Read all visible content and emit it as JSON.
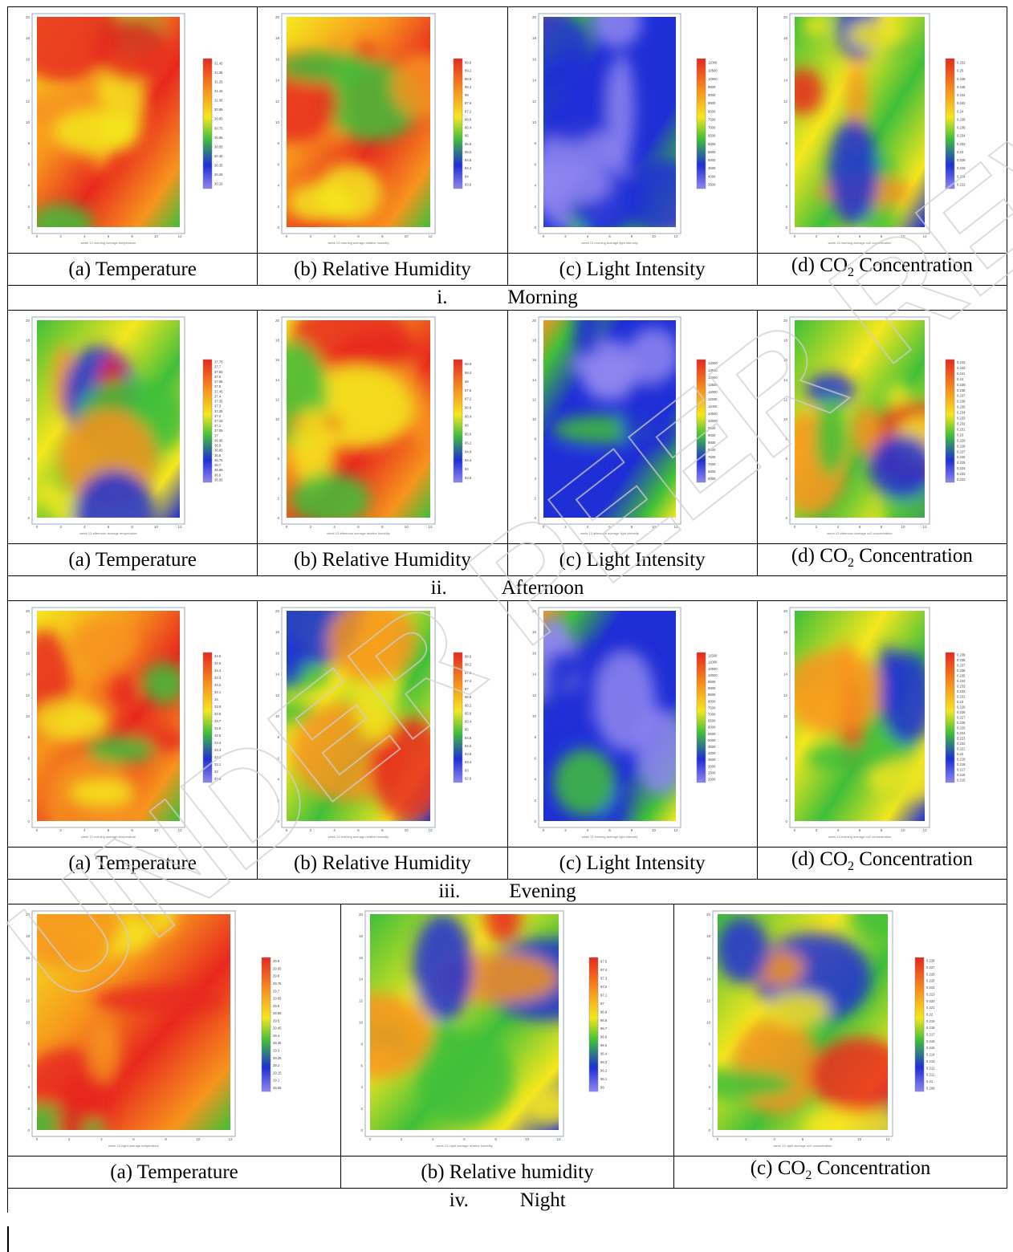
{
  "sections": [
    {
      "label_num": "i.",
      "label": "Morning",
      "panels": [
        {
          "caption_prefix": "(a) ",
          "caption": "Temperature",
          "variable": "temperature",
          "scale": "hot",
          "colorbar_ticks": [
            "31.45",
            "31.35",
            "31.25",
            "31.15",
            "31.05",
            "30.95",
            "30.85",
            "30.75",
            "30.65",
            "30.55",
            "30.45",
            "30.35",
            "30.25",
            "30.15"
          ],
          "plot_caption": "week 13 morning average temperature"
        },
        {
          "caption_prefix": "(b) ",
          "caption": "Relative Humidity",
          "variable": "humidity",
          "scale": "hot",
          "colorbar_ticks": [
            "89.6",
            "89.2",
            "88.8",
            "88.4",
            "88",
            "87.6",
            "87.2",
            "86.8",
            "86.4",
            "86",
            "85.6",
            "85.2",
            "84.8",
            "84.4",
            "84",
            "83.6"
          ],
          "plot_caption": "week 13 morning average relative humidity"
        },
        {
          "caption_prefix": "(c) ",
          "caption": "Light Intensity",
          "variable": "light",
          "scale": "cool",
          "colorbar_ticks": [
            "11000",
            "10500",
            "10000",
            "9500",
            "9000",
            "8500",
            "8000",
            "7500",
            "7000",
            "6500",
            "6000",
            "5500",
            "5000",
            "4500",
            "4000",
            "3500"
          ],
          "plot_caption": "week 13 morning average light intensity"
        },
        {
          "caption_prefix": "(d) ",
          "caption": "CO",
          "caption_sub": "2",
          "caption_suffix": " Concentration",
          "variable": "co2",
          "scale": "mid",
          "colorbar_ticks": [
            "0.252",
            "0.25",
            "0.248",
            "0.246",
            "0.244",
            "0.242",
            "0.24",
            "0.238",
            "0.236",
            "0.234",
            "0.232",
            "0.23",
            "0.228",
            "0.226",
            "0.224",
            "0.222"
          ],
          "plot_caption": "week 13 morning average co2 concentration"
        }
      ]
    },
    {
      "label_num": "ii.",
      "label": "Afternoon",
      "panels": [
        {
          "caption_prefix": "(a) ",
          "caption": "Temperature",
          "variable": "temperature",
          "scale": "mid",
          "colorbar_ticks": [
            "37.75",
            "37.7",
            "37.65",
            "37.6",
            "37.55",
            "37.5",
            "37.45",
            "37.4",
            "37.35",
            "37.3",
            "37.25",
            "37.2",
            "37.15",
            "37.1",
            "37.05",
            "37",
            "36.95",
            "36.9",
            "36.85",
            "36.8",
            "36.75",
            "36.7",
            "36.65",
            "36.6",
            "36.55"
          ],
          "plot_caption": "week 13 afternoon average temperature"
        },
        {
          "caption_prefix": "(b) ",
          "caption": "Relative Humidity",
          "variable": "humidity",
          "scale": "hot",
          "colorbar_ticks": [
            "68.8",
            "68.4",
            "68",
            "67.6",
            "67.2",
            "66.8",
            "66.4",
            "66",
            "65.6",
            "65.2",
            "64.8",
            "64.4",
            "64",
            "63.6"
          ],
          "plot_caption": "week 13 afternoon average relative humidity"
        },
        {
          "caption_prefix": "(c) ",
          "caption": "Light Intensity",
          "variable": "light",
          "scale": "cool",
          "colorbar_ticks": [
            "14000",
            "13500",
            "13000",
            "12500",
            "12000",
            "11500",
            "11000",
            "10500",
            "10000",
            "9500",
            "9000",
            "8500",
            "8000",
            "7500",
            "7000",
            "6500",
            "6000"
          ],
          "plot_caption": "week 13 afternoon average light intensity"
        },
        {
          "caption_prefix": "(d) ",
          "caption": "CO",
          "caption_sub": "2",
          "caption_suffix": " Concentration",
          "variable": "co2",
          "scale": "mid",
          "colorbar_ticks": [
            "0.243",
            "0.242",
            "0.241",
            "0.24",
            "0.239",
            "0.238",
            "0.237",
            "0.236",
            "0.235",
            "0.234",
            "0.233",
            "0.232",
            "0.231",
            "0.23",
            "0.229",
            "0.228",
            "0.227",
            "0.226",
            "0.225",
            "0.224",
            "0.223",
            "0.222"
          ],
          "plot_caption": "week 13 afternoon average co2 concentration"
        }
      ]
    },
    {
      "label_num": "iii.",
      "label": "Evening",
      "panels": [
        {
          "caption_prefix": "(a) ",
          "caption": "Temperature",
          "variable": "temperature",
          "scale": "hot",
          "colorbar_ticks": [
            "34.6",
            "34.5",
            "34.4",
            "34.3",
            "34.2",
            "34.1",
            "34",
            "33.9",
            "33.8",
            "33.7",
            "33.6",
            "33.5",
            "33.4",
            "33.3",
            "33.2",
            "33.1",
            "33",
            "32.9"
          ],
          "plot_caption": "week 13 evening average temperature"
        },
        {
          "caption_prefix": "(b) ",
          "caption": "Relative Humidity",
          "variable": "humidity",
          "scale": "mid",
          "colorbar_ticks": [
            "68.6",
            "68.2",
            "67.8",
            "67.4",
            "67",
            "66.6",
            "66.2",
            "65.8",
            "65.4",
            "65",
            "64.6",
            "64.2",
            "63.8",
            "63.4",
            "63",
            "62.6"
          ],
          "plot_caption": "week 13 evening average relative humidity"
        },
        {
          "caption_prefix": "(c) ",
          "caption": "Light Intensity",
          "variable": "light",
          "scale": "cool",
          "colorbar_ticks": [
            "11500",
            "11000",
            "10500",
            "10000",
            "9500",
            "9000",
            "8500",
            "8000",
            "7500",
            "7000",
            "6500",
            "6000",
            "5500",
            "5000",
            "4500",
            "4000",
            "3500",
            "3000",
            "2500",
            "2000"
          ],
          "plot_caption": "week 13 evening average light intensity"
        },
        {
          "caption_prefix": "(d) ",
          "caption": "CO",
          "caption_sub": "2",
          "caption_suffix": " Concentration",
          "variable": "co2",
          "scale": "mid",
          "colorbar_ticks": [
            "0.239",
            "0.238",
            "0.237",
            "0.236",
            "0.235",
            "0.234",
            "0.233",
            "0.232",
            "0.231",
            "0.23",
            "0.229",
            "0.228",
            "0.227",
            "0.226",
            "0.225",
            "0.224",
            "0.223",
            "0.222",
            "0.221",
            "0.22",
            "0.219",
            "0.218",
            "0.217",
            "0.216",
            "0.215"
          ],
          "plot_caption": "week 13 evening average co2 concentration"
        }
      ]
    },
    {
      "label_num": "iv.",
      "label": "Night",
      "panels": [
        {
          "caption_prefix": "(a)  ",
          "caption": "Temperature",
          "variable": "temperature",
          "scale": "hot",
          "colorbar_ticks": [
            "29.9",
            "29.85",
            "29.8",
            "29.75",
            "29.7",
            "29.65",
            "29.6",
            "29.55",
            "29.5",
            "29.45",
            "29.4",
            "29.35",
            "29.3",
            "29.25",
            "29.2",
            "29.15",
            "29.1",
            "29.05"
          ],
          "plot_caption": "week 13 night average temperature"
        },
        {
          "caption_prefix": "(b)  ",
          "caption": "Relative humidity",
          "variable": "humidity",
          "scale": "mid",
          "colorbar_ticks": [
            "97.5",
            "97.4",
            "97.3",
            "97.2",
            "97.1",
            "97",
            "96.9",
            "96.8",
            "96.7",
            "96.6",
            "96.5",
            "96.4",
            "96.3",
            "96.2",
            "96.1",
            "96"
          ],
          "plot_caption": "week 13 night average relative humidity"
        },
        {
          "caption_prefix": "(c)  ",
          "caption": "CO",
          "caption_sub": "2",
          "caption_suffix": " Concentration",
          "variable": "co2",
          "scale": "mid",
          "colorbar_ticks": [
            "0.228",
            "0.227",
            "0.226",
            "0.225",
            "0.224",
            "0.223",
            "0.222",
            "0.221",
            "0.22",
            "0.219",
            "0.218",
            "0.217",
            "0.216",
            "0.215",
            "0.214",
            "0.213",
            "0.212",
            "0.211",
            "0.21",
            "0.209"
          ],
          "plot_caption": "week 13 night average co2 concentration"
        }
      ]
    }
  ],
  "axes": {
    "x_ticks": [
      "0",
      "2",
      "4",
      "6",
      "8",
      "10",
      "12"
    ],
    "y_ticks": [
      "0",
      "2",
      "4",
      "6",
      "8",
      "10",
      "12",
      "14",
      "16",
      "18",
      "20"
    ]
  },
  "colors": {
    "red": "#e8281e",
    "orange": "#f7941d",
    "yellow": "#f5e71e",
    "green": "#3fbf3a",
    "blue": "#1f2fd6",
    "violet": "#8f86f0"
  },
  "watermark_text": "UNDER PEER REVIEW"
}
